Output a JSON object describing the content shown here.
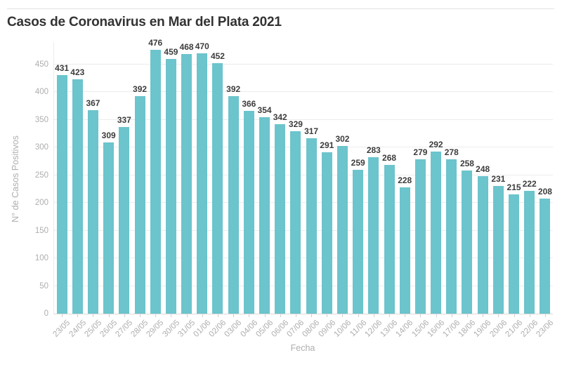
{
  "chart_data": {
    "type": "bar",
    "title": "Casos de Coronavirus en Mar del Plata 2021",
    "xlabel": "Fecha",
    "ylabel": "N° de Casos Positivos",
    "categories": [
      "23/05",
      "24/05",
      "25/05",
      "26/05",
      "27/05",
      "28/05",
      "29/05",
      "30/05",
      "31/05",
      "01/06",
      "02/06",
      "03/06",
      "04/06",
      "05/06",
      "06/06",
      "07/06",
      "08/06",
      "09/06",
      "10/06",
      "11/06",
      "12/06",
      "13/06",
      "14/06",
      "15/06",
      "16/06",
      "17/06",
      "18/06",
      "19/06",
      "20/06",
      "21/06",
      "22/06",
      "23/06"
    ],
    "values": [
      431,
      423,
      367,
      309,
      337,
      392,
      476,
      459,
      468,
      470,
      452,
      392,
      366,
      354,
      342,
      329,
      317,
      291,
      302,
      259,
      283,
      268,
      228,
      279,
      292,
      278,
      258,
      248,
      231,
      215,
      222,
      208
    ],
    "y_ticks": [
      0,
      50,
      100,
      150,
      200,
      250,
      300,
      350,
      400,
      450
    ],
    "ylim": [
      0,
      490
    ],
    "grid": true,
    "legend": "none",
    "show_value_labels": true,
    "colors": {
      "bar": "#6cc4cc",
      "value_label": "#3c3c3c",
      "title": "#333333",
      "axis_text": "#aeaeae",
      "gridline": "#ececec",
      "tick_mark": "#cfcfcf",
      "divider": "#e3e3e3"
    }
  }
}
